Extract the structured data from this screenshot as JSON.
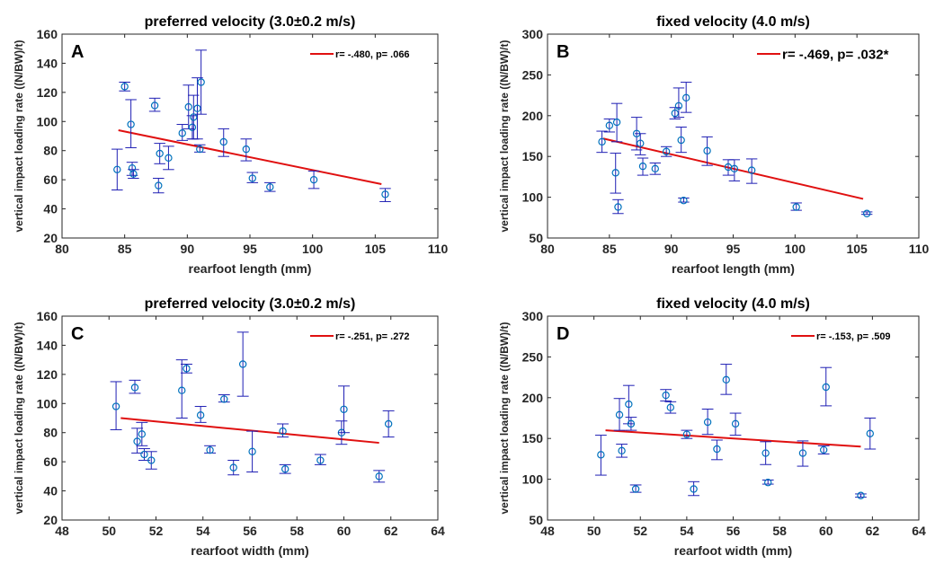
{
  "chart_data": [
    {
      "id": "A",
      "type": "scatter",
      "panel_letter": "A",
      "title": "preferred velocity (3.0±0.2 m/s)",
      "xlabel": "rearfoot length (mm)",
      "ylabel": "vertical impact loading rate ((N/BW)/t)",
      "xlim": [
        80,
        110
      ],
      "ylim": [
        20,
        160
      ],
      "xticks": [
        80,
        85,
        90,
        95,
        100,
        105,
        110
      ],
      "yticks": [
        20,
        40,
        60,
        80,
        100,
        120,
        140,
        160
      ],
      "legend": {
        "label": "r= -.480, p= .066",
        "location": "top-right"
      },
      "marker_color": "#0072bd",
      "errorbar_color": "#1f1fb4",
      "fit_color": "#e01010",
      "fit_line": {
        "x": [
          84.5,
          105.5
        ],
        "y": [
          94,
          57
        ]
      },
      "points": [
        {
          "x": 84.4,
          "y": 67,
          "lo": 53,
          "hi": 81
        },
        {
          "x": 85.0,
          "y": 124,
          "lo": 121,
          "hi": 127
        },
        {
          "x": 85.5,
          "y": 98,
          "lo": 82,
          "hi": 115
        },
        {
          "x": 85.6,
          "y": 68,
          "lo": 63,
          "hi": 72
        },
        {
          "x": 85.7,
          "y": 64,
          "lo": 61,
          "hi": 67
        },
        {
          "x": 87.4,
          "y": 111,
          "lo": 107,
          "hi": 116
        },
        {
          "x": 87.7,
          "y": 56,
          "lo": 51,
          "hi": 61
        },
        {
          "x": 87.8,
          "y": 78,
          "lo": 71,
          "hi": 85
        },
        {
          "x": 88.5,
          "y": 75,
          "lo": 67,
          "hi": 83
        },
        {
          "x": 89.6,
          "y": 92,
          "lo": 87,
          "hi": 98
        },
        {
          "x": 90.1,
          "y": 110,
          "lo": 95,
          "hi": 125
        },
        {
          "x": 90.4,
          "y": 96,
          "lo": 88,
          "hi": 104
        },
        {
          "x": 90.5,
          "y": 103,
          "lo": 88,
          "hi": 118
        },
        {
          "x": 90.8,
          "y": 109,
          "lo": 88,
          "hi": 130
        },
        {
          "x": 91.0,
          "y": 81,
          "lo": 79,
          "hi": 84
        },
        {
          "x": 91.1,
          "y": 127,
          "lo": 105,
          "hi": 149
        },
        {
          "x": 92.9,
          "y": 86,
          "lo": 76,
          "hi": 95
        },
        {
          "x": 94.7,
          "y": 81,
          "lo": 73,
          "hi": 88
        },
        {
          "x": 95.2,
          "y": 61,
          "lo": 58,
          "hi": 65
        },
        {
          "x": 96.6,
          "y": 55,
          "lo": 52,
          "hi": 58
        },
        {
          "x": 100.1,
          "y": 60,
          "lo": 54,
          "hi": 66
        },
        {
          "x": 105.8,
          "y": 50,
          "lo": 45,
          "hi": 54
        }
      ]
    },
    {
      "id": "B",
      "type": "scatter",
      "panel_letter": "B",
      "title": "fixed velocity (4.0 m/s)",
      "xlabel": "rearfoot length (mm)",
      "ylabel": "vertical impact loading rate ((N/BW)/t)",
      "xlim": [
        80,
        110
      ],
      "ylim": [
        50,
        300
      ],
      "xticks": [
        80,
        85,
        90,
        95,
        100,
        105,
        110
      ],
      "yticks": [
        50,
        100,
        150,
        200,
        250,
        300
      ],
      "legend": {
        "label": "r= -.469, p= .032*",
        "location": "top-right"
      },
      "marker_color": "#0072bd",
      "errorbar_color": "#1f1fb4",
      "fit_color": "#e01010",
      "fit_line": {
        "x": [
          84.5,
          105.5
        ],
        "y": [
          172,
          98
        ]
      },
      "points": [
        {
          "x": 84.4,
          "y": 168,
          "lo": 155,
          "hi": 181
        },
        {
          "x": 85.0,
          "y": 188,
          "lo": 180,
          "hi": 196
        },
        {
          "x": 85.5,
          "y": 130,
          "lo": 105,
          "hi": 154
        },
        {
          "x": 85.6,
          "y": 192,
          "lo": 168,
          "hi": 215
        },
        {
          "x": 85.7,
          "y": 88,
          "lo": 80,
          "hi": 97
        },
        {
          "x": 87.2,
          "y": 178,
          "lo": 158,
          "hi": 198
        },
        {
          "x": 87.5,
          "y": 166,
          "lo": 152,
          "hi": 178
        },
        {
          "x": 87.7,
          "y": 138,
          "lo": 127,
          "hi": 148
        },
        {
          "x": 88.7,
          "y": 135,
          "lo": 128,
          "hi": 142
        },
        {
          "x": 89.6,
          "y": 156,
          "lo": 150,
          "hi": 162
        },
        {
          "x": 90.3,
          "y": 203,
          "lo": 196,
          "hi": 210
        },
        {
          "x": 90.6,
          "y": 212,
          "lo": 198,
          "hi": 234
        },
        {
          "x": 90.8,
          "y": 170,
          "lo": 155,
          "hi": 186
        },
        {
          "x": 91.0,
          "y": 96,
          "lo": 94,
          "hi": 99
        },
        {
          "x": 91.2,
          "y": 222,
          "lo": 204,
          "hi": 241
        },
        {
          "x": 92.9,
          "y": 157,
          "lo": 139,
          "hi": 174
        },
        {
          "x": 94.6,
          "y": 137,
          "lo": 127,
          "hi": 146
        },
        {
          "x": 95.1,
          "y": 135,
          "lo": 120,
          "hi": 146
        },
        {
          "x": 96.5,
          "y": 133,
          "lo": 117,
          "hi": 147
        },
        {
          "x": 100.1,
          "y": 88,
          "lo": 84,
          "hi": 93
        },
        {
          "x": 105.8,
          "y": 80,
          "lo": 79,
          "hi": 82
        }
      ]
    },
    {
      "id": "C",
      "type": "scatter",
      "panel_letter": "C",
      "title": "preferred velocity (3.0±0.2 m/s)",
      "xlabel": "rearfoot width (mm)",
      "ylabel": "vertical impact loading rate ((N/BW)/t)",
      "xlim": [
        48,
        64
      ],
      "ylim": [
        20,
        160
      ],
      "xticks": [
        48,
        50,
        52,
        54,
        56,
        58,
        60,
        62,
        64
      ],
      "yticks": [
        20,
        40,
        60,
        80,
        100,
        120,
        140,
        160
      ],
      "legend": {
        "label": "r= -.251, p= .272",
        "location": "top-right"
      },
      "marker_color": "#0072bd",
      "errorbar_color": "#1f1fb4",
      "fit_color": "#e01010",
      "fit_line": {
        "x": [
          50.5,
          61.5
        ],
        "y": [
          90,
          73
        ]
      },
      "points": [
        {
          "x": 50.3,
          "y": 98,
          "lo": 82,
          "hi": 115
        },
        {
          "x": 51.1,
          "y": 111,
          "lo": 107,
          "hi": 116
        },
        {
          "x": 51.2,
          "y": 74,
          "lo": 66,
          "hi": 83
        },
        {
          "x": 51.4,
          "y": 79,
          "lo": 71,
          "hi": 87
        },
        {
          "x": 51.5,
          "y": 65,
          "lo": 61,
          "hi": 69
        },
        {
          "x": 51.8,
          "y": 61,
          "lo": 55,
          "hi": 67
        },
        {
          "x": 53.1,
          "y": 109,
          "lo": 90,
          "hi": 130
        },
        {
          "x": 53.3,
          "y": 124,
          "lo": 121,
          "hi": 127
        },
        {
          "x": 53.9,
          "y": 92,
          "lo": 87,
          "hi": 98
        },
        {
          "x": 54.3,
          "y": 68,
          "lo": 66,
          "hi": 71
        },
        {
          "x": 54.9,
          "y": 103,
          "lo": 101,
          "hi": 106
        },
        {
          "x": 55.3,
          "y": 56,
          "lo": 51,
          "hi": 61
        },
        {
          "x": 55.7,
          "y": 127,
          "lo": 105,
          "hi": 149
        },
        {
          "x": 56.1,
          "y": 67,
          "lo": 53,
          "hi": 81
        },
        {
          "x": 57.4,
          "y": 81,
          "lo": 77,
          "hi": 86
        },
        {
          "x": 57.5,
          "y": 55,
          "lo": 52,
          "hi": 58
        },
        {
          "x": 59.0,
          "y": 61,
          "lo": 58,
          "hi": 65
        },
        {
          "x": 59.9,
          "y": 80,
          "lo": 72,
          "hi": 88
        },
        {
          "x": 60.0,
          "y": 96,
          "lo": 80,
          "hi": 112
        },
        {
          "x": 61.5,
          "y": 50,
          "lo": 46,
          "hi": 54
        },
        {
          "x": 61.9,
          "y": 86,
          "lo": 77,
          "hi": 95
        }
      ]
    },
    {
      "id": "D",
      "type": "scatter",
      "panel_letter": "D",
      "title": "fixed velocity (4.0 m/s)",
      "xlabel": "rearfoot width (mm)",
      "ylabel": "vertical impact loading rate ((N/BW)/t)",
      "xlim": [
        48,
        64
      ],
      "ylim": [
        50,
        300
      ],
      "xticks": [
        48,
        50,
        52,
        54,
        56,
        58,
        60,
        62,
        64
      ],
      "yticks": [
        50,
        100,
        150,
        200,
        250,
        300
      ],
      "legend": {
        "label": "r= -.153, p= .509",
        "location": "top-right"
      },
      "marker_color": "#0072bd",
      "errorbar_color": "#1f1fb4",
      "fit_color": "#e01010",
      "fit_line": {
        "x": [
          50.5,
          61.5
        ],
        "y": [
          160,
          140
        ]
      },
      "points": [
        {
          "x": 50.3,
          "y": 130,
          "lo": 105,
          "hi": 154
        },
        {
          "x": 51.1,
          "y": 179,
          "lo": 160,
          "hi": 199
        },
        {
          "x": 51.2,
          "y": 135,
          "lo": 127,
          "hi": 143
        },
        {
          "x": 51.5,
          "y": 192,
          "lo": 168,
          "hi": 215
        },
        {
          "x": 51.6,
          "y": 168,
          "lo": 160,
          "hi": 176
        },
        {
          "x": 51.8,
          "y": 88,
          "lo": 84,
          "hi": 93
        },
        {
          "x": 53.1,
          "y": 203,
          "lo": 196,
          "hi": 210
        },
        {
          "x": 53.3,
          "y": 188,
          "lo": 181,
          "hi": 195
        },
        {
          "x": 54.0,
          "y": 155,
          "lo": 150,
          "hi": 160
        },
        {
          "x": 54.3,
          "y": 88,
          "lo": 80,
          "hi": 97
        },
        {
          "x": 54.9,
          "y": 170,
          "lo": 155,
          "hi": 186
        },
        {
          "x": 55.3,
          "y": 137,
          "lo": 124,
          "hi": 148
        },
        {
          "x": 55.7,
          "y": 222,
          "lo": 204,
          "hi": 241
        },
        {
          "x": 56.1,
          "y": 168,
          "lo": 154,
          "hi": 181
        },
        {
          "x": 57.4,
          "y": 132,
          "lo": 118,
          "hi": 146
        },
        {
          "x": 57.5,
          "y": 96,
          "lo": 94,
          "hi": 99
        },
        {
          "x": 59.0,
          "y": 132,
          "lo": 116,
          "hi": 147
        },
        {
          "x": 59.9,
          "y": 136,
          "lo": 131,
          "hi": 141
        },
        {
          "x": 60.0,
          "y": 213,
          "lo": 190,
          "hi": 237
        },
        {
          "x": 61.5,
          "y": 80,
          "lo": 78,
          "hi": 82
        },
        {
          "x": 61.9,
          "y": 156,
          "lo": 137,
          "hi": 175
        }
      ]
    }
  ]
}
